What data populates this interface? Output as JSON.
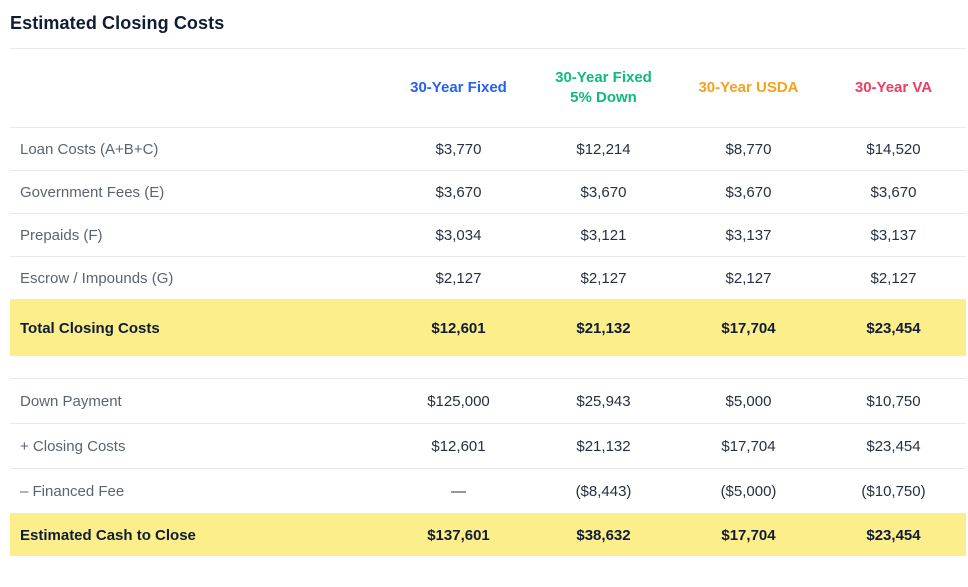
{
  "page": {
    "title": "Estimated Closing Costs"
  },
  "colors": {
    "highlight_yellow": "#fcee8b",
    "column_blue": "#2563eb",
    "column_green": "#10b981",
    "column_orange": "#f6a21e",
    "column_red": "#ef3e5e",
    "label_gray": "#5b6472",
    "dark_navy": "#0f1c33"
  },
  "table": {
    "columns": [
      {
        "line1": "30-Year Fixed",
        "line2": "",
        "color": "#2563eb"
      },
      {
        "line1": "30-Year Fixed",
        "line2": "5% Down",
        "color": "#10b981"
      },
      {
        "line1": "30-Year USDA",
        "line2": "",
        "color": "#f6a21e"
      },
      {
        "line1": "30-Year VA",
        "line2": "",
        "color": "#ef3e5e"
      }
    ],
    "closing_rows": [
      {
        "label": "Loan Costs (A+B+C)",
        "values": [
          "$3,770",
          "$12,214",
          "$8,770",
          "$14,520"
        ]
      },
      {
        "label": "Government Fees (E)",
        "values": [
          "$3,670",
          "$3,670",
          "$3,670",
          "$3,670"
        ]
      },
      {
        "label": "Prepaids (F)",
        "values": [
          "$3,034",
          "$3,121",
          "$3,137",
          "$3,137"
        ]
      },
      {
        "label": "Escrow / Impounds (G)",
        "values": [
          "$2,127",
          "$2,127",
          "$2,127",
          "$2,127"
        ]
      }
    ],
    "total_row": {
      "label": "Total Closing Costs",
      "values": [
        "$12,601",
        "$21,132",
        "$17,704",
        "$23,454"
      ]
    },
    "cash_rows": [
      {
        "label": "Down Payment",
        "values": [
          "$125,000",
          "$25,943",
          "$5,000",
          "$10,750"
        ]
      },
      {
        "label": "+ Closing Costs",
        "values": [
          "$12,601",
          "$21,132",
          "$17,704",
          "$23,454"
        ]
      },
      {
        "label": "– Financed Fee",
        "values": [
          "—",
          "($8,443)",
          "($5,000)",
          "($10,750)"
        ]
      }
    ],
    "cash_total_row": {
      "label": "Estimated Cash to Close",
      "values": [
        "$137,601",
        "$38,632",
        "$17,704",
        "$23,454"
      ]
    }
  }
}
